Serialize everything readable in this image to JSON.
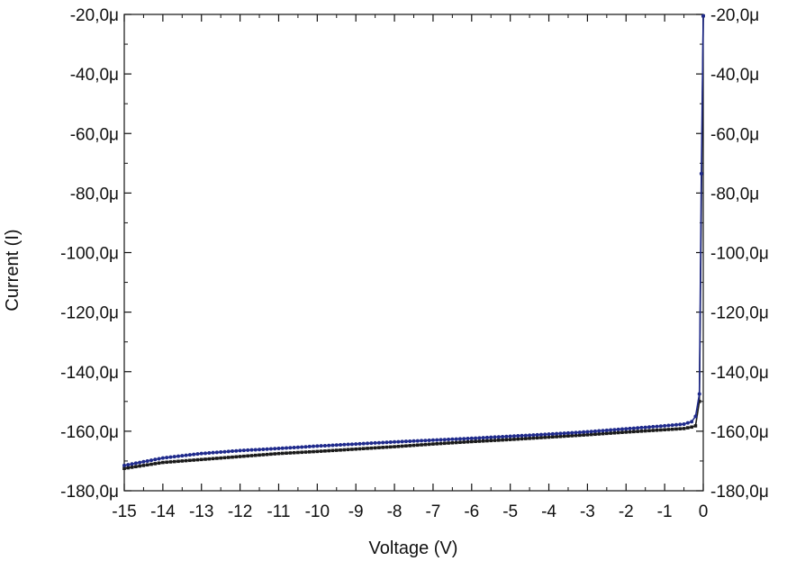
{
  "chart_data": {
    "type": "scatter",
    "title": "",
    "xlabel": "Voltage (V)",
    "ylabel": "Current (I)",
    "xlim": [
      -15,
      0
    ],
    "ylim": [
      -180,
      -20
    ],
    "y_unit_suffix": "μ",
    "x_ticks": [
      -15,
      -14,
      -13,
      -12,
      -11,
      -10,
      -9,
      -8,
      -7,
      -6,
      -5,
      -4,
      -3,
      -2,
      -1,
      0
    ],
    "x_tick_labels": [
      "-15",
      "-14",
      "-13",
      "-12",
      "-11",
      "-10",
      "-9",
      "-8",
      "-7",
      "-6",
      "-5",
      "-4",
      "-3",
      "-2",
      "-1",
      "0"
    ],
    "y_ticks": [
      -20,
      -40,
      -60,
      -80,
      -100,
      -120,
      -140,
      -160,
      -180
    ],
    "y_tick_labels": [
      "-20,0μ",
      "-40,0μ",
      "-60,0μ",
      "-80,0μ",
      "-100,0μ",
      "-120,0μ",
      "-140,0μ",
      "-160,0μ",
      "-180,0μ"
    ],
    "right_y_tick_labels": [
      "-20,0μ",
      "-40,0μ",
      "-60,0μ",
      "-80,0μ",
      "-100,0μ",
      "-120,0μ",
      "-140,0μ",
      "-160,0μ",
      "-180,0μ"
    ],
    "grid": false,
    "legend": "none",
    "series": [
      {
        "color": "#1a1a1a",
        "marker": "square",
        "x": [
          -15,
          -14,
          -13,
          -12,
          -11,
          -10,
          -9,
          -8,
          -7,
          -6,
          -5,
          -4,
          -3,
          -2,
          -1,
          -0.5,
          -0.3,
          -0.2,
          -0.1,
          0
        ],
        "y": [
          -172.5,
          -170.5,
          -169.5,
          -168.5,
          -167.5,
          -166.8,
          -166,
          -165.2,
          -164.3,
          -163.5,
          -162.8,
          -162,
          -161.2,
          -160.3,
          -159.5,
          -159.1,
          -158.6,
          -158.2,
          -150,
          -20.5
        ]
      },
      {
        "color": "#1f2a8c",
        "marker": "circle",
        "x": [
          -15,
          -14,
          -13,
          -12,
          -11,
          -10,
          -9,
          -8,
          -7,
          -6,
          -5,
          -4,
          -3,
          -2,
          -1,
          -0.5,
          -0.3,
          -0.2,
          -0.1,
          -0.05,
          0
        ],
        "y": [
          -171.5,
          -169,
          -167.5,
          -166.5,
          -165.8,
          -165,
          -164.3,
          -163.6,
          -163,
          -162.4,
          -161.7,
          -161,
          -160.2,
          -159.2,
          -158.2,
          -157.6,
          -156.8,
          -155,
          -147.5,
          -73.5,
          -20.5
        ]
      }
    ]
  }
}
